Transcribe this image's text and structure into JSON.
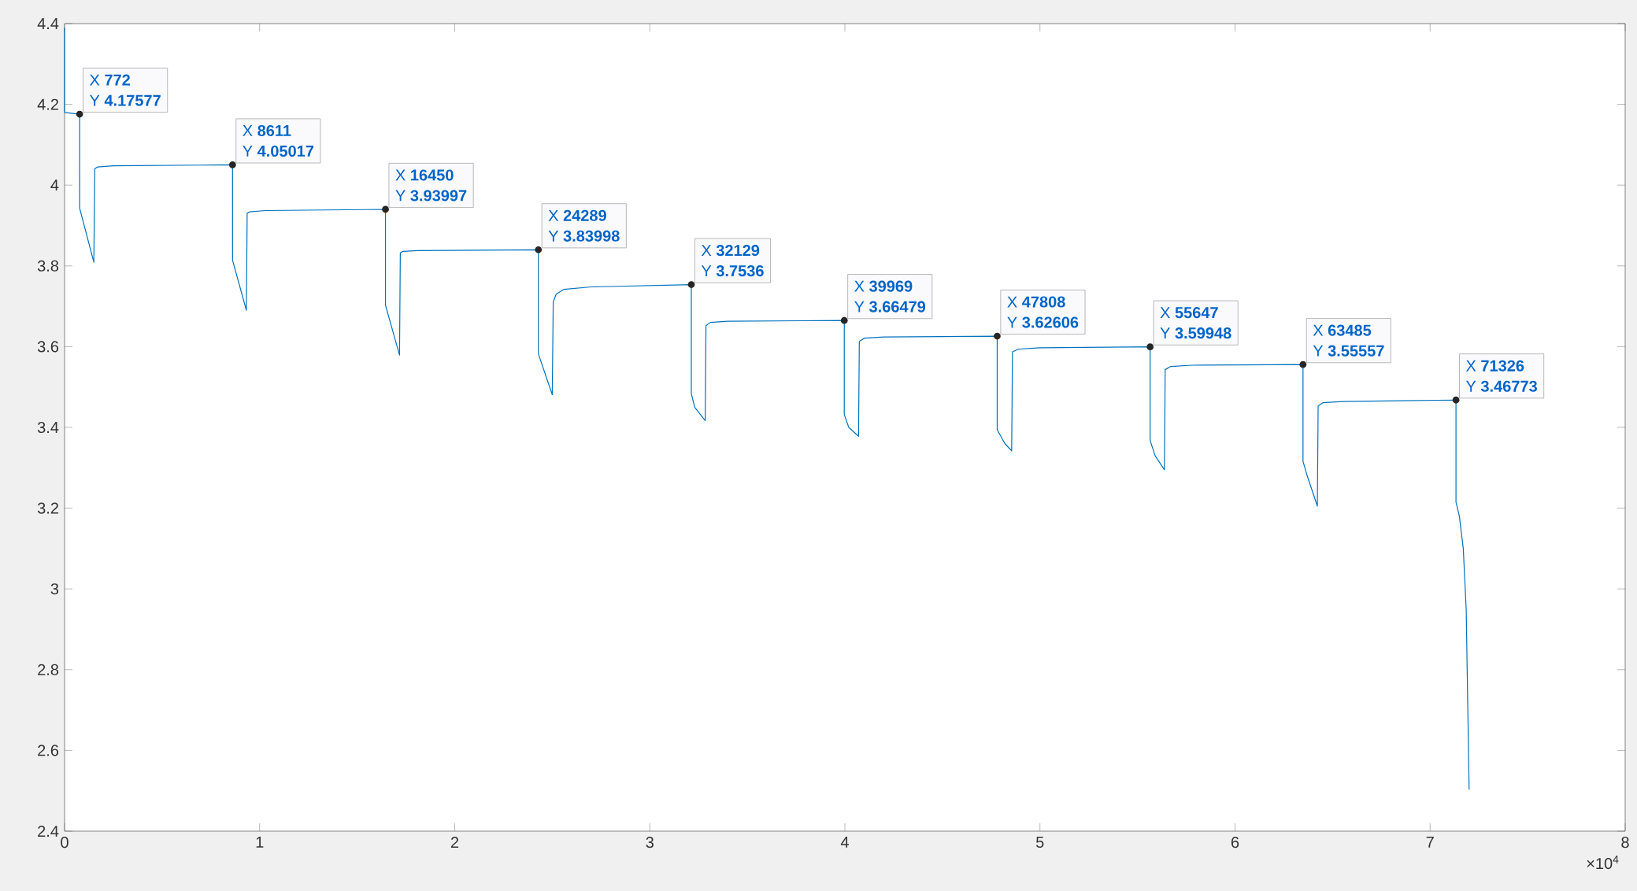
{
  "chart_data": {
    "type": "line",
    "xlim": [
      0,
      8
    ],
    "ylim": [
      2.4,
      4.4
    ],
    "xticks": [
      0,
      1,
      2,
      3,
      4,
      5,
      6,
      7,
      8
    ],
    "yticks": [
      2.4,
      2.6,
      2.8,
      3,
      3.2,
      3.4,
      3.6,
      3.8,
      4,
      4.2,
      4.4
    ],
    "grid": false,
    "marker": "none",
    "line_style": "solid",
    "series": [
      {
        "color": "#0072bd",
        "x": [
          0,
          0,
          0.0772,
          0.0772,
          0.15,
          0.155,
          0.17,
          0.25,
          0.8611,
          0.8611,
          0.932,
          0.936,
          0.95,
          1.03,
          1.645,
          1.645,
          1.717,
          1.721,
          1.735,
          1.81,
          2.4289,
          2.4289,
          2.5,
          2.505,
          2.52,
          2.56,
          2.7,
          3.2129,
          3.2129,
          3.23,
          3.284,
          3.288,
          3.31,
          3.4,
          3.9969,
          3.9969,
          4.02,
          4.07,
          4.074,
          4.1,
          4.2,
          4.7808,
          4.7808,
          4.82,
          4.855,
          4.859,
          4.89,
          5.0,
          5.5647,
          5.5647,
          5.59,
          5.638,
          5.642,
          5.67,
          5.78,
          6.3485,
          6.3485,
          6.37,
          6.422,
          6.426,
          6.45,
          6.55,
          7.1326,
          7.1326,
          7.15,
          7.17,
          7.185,
          7.2
        ],
        "values": [
          4.39,
          4.18,
          4.17577,
          3.943,
          3.809,
          4.041,
          4.045,
          4.048,
          4.05017,
          3.814,
          3.69,
          3.93,
          3.934,
          3.937,
          3.93997,
          3.703,
          3.579,
          3.832,
          3.836,
          3.838,
          3.83998,
          3.582,
          3.481,
          3.711,
          3.73,
          3.742,
          3.748,
          3.7536,
          3.484,
          3.45,
          3.417,
          3.652,
          3.66,
          3.663,
          3.66479,
          3.432,
          3.4,
          3.378,
          3.613,
          3.621,
          3.624,
          3.62606,
          3.394,
          3.36,
          3.342,
          3.587,
          3.594,
          3.597,
          3.59948,
          3.368,
          3.33,
          3.295,
          3.543,
          3.551,
          3.554,
          3.55557,
          3.316,
          3.28,
          3.205,
          3.453,
          3.461,
          3.464,
          3.46773,
          3.215,
          3.18,
          3.1,
          2.95,
          2.503
        ]
      }
    ],
    "annotations": [
      {
        "text": "X **772**",
        "x": 0.0772,
        "y": 4.17577
      },
      {
        "text": "Y **4.17577**",
        "x": 0.0772,
        "y": 4.17577
      },
      {
        "text": "X **8611**",
        "x": 0.8611,
        "y": 4.05017
      },
      {
        "text": "Y **4.05017**",
        "x": 0.8611,
        "y": 4.05017
      },
      {
        "text": "X **16450**",
        "x": 1.645,
        "y": 3.93997
      },
      {
        "text": "Y **3.93997**",
        "x": 1.645,
        "y": 3.93997
      },
      {
        "text": "X **24289**",
        "x": 2.4289,
        "y": 3.83998
      },
      {
        "text": "Y **3.83998**",
        "x": 2.4289,
        "y": 3.83998
      },
      {
        "text": "X **32129**",
        "x": 3.2129,
        "y": 3.7536
      },
      {
        "text": "Y **3.7536**",
        "x": 3.2129,
        "y": 3.7536
      },
      {
        "text": "X **39969**",
        "x": 3.9969,
        "y": 3.66479
      },
      {
        "text": "Y **3.66479**",
        "x": 3.9969,
        "y": 3.66479
      },
      {
        "text": "X **47808**",
        "x": 4.7808,
        "y": 3.62606
      },
      {
        "text": "Y **3.62606**",
        "x": 4.7808,
        "y": 3.62606
      },
      {
        "text": "X **55647**",
        "x": 5.5647,
        "y": 3.59948
      },
      {
        "text": "Y **3.59948**",
        "x": 5.5647,
        "y": 3.59948
      },
      {
        "text": "X **63485**",
        "x": 6.3485,
        "y": 3.55557
      },
      {
        "text": "Y **3.55557**",
        "x": 6.3485,
        "y": 3.55557
      },
      {
        "text": "X **71326**",
        "x": 7.1326,
        "y": 3.46773
      },
      {
        "text": "Y **3.46773**",
        "x": 7.1326,
        "y": 3.46773
      },
      "×10$^{4}$"
    ]
  }
}
